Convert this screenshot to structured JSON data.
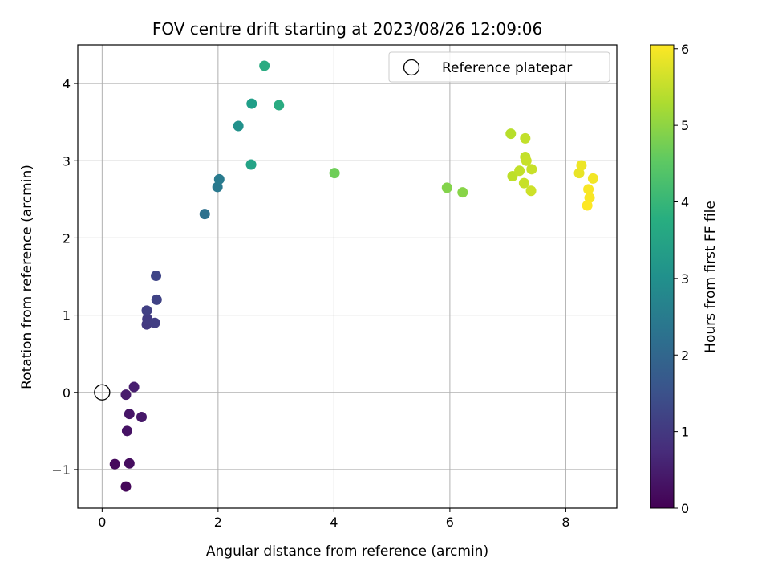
{
  "chart_data": {
    "type": "scatter",
    "title": "FOV centre drift starting at 2023/08/26 12:09:06",
    "xlabel": "Angular distance from reference (arcmin)",
    "ylabel": "Rotation from reference (arcmin)",
    "xlim": [
      -0.42,
      8.88
    ],
    "ylim": [
      -1.5,
      4.5
    ],
    "xticks": [
      0,
      2,
      4,
      6,
      8
    ],
    "yticks": [
      -1,
      0,
      1,
      2,
      3,
      4
    ],
    "xtick_labels": [
      "0",
      "2",
      "4",
      "6",
      "8"
    ],
    "ytick_labels": [
      "−1",
      "0",
      "1",
      "2",
      "3",
      "4"
    ],
    "grid": true,
    "legend": {
      "position": "top-right",
      "label": "Reference platepar"
    },
    "reference_point": {
      "x": 0,
      "y": 0
    },
    "colorbar": {
      "label": "Hours from first FF file",
      "colormap": "viridis",
      "range": [
        0,
        6.05
      ],
      "ticks": [
        0,
        1,
        2,
        3,
        4,
        5,
        6
      ],
      "tick_labels": [
        "0",
        "1",
        "2",
        "3",
        "4",
        "5",
        "6"
      ]
    },
    "points": [
      {
        "x": 0.41,
        "y": -1.22,
        "t": 0.1
      },
      {
        "x": 0.22,
        "y": -0.93,
        "t": 0.15
      },
      {
        "x": 0.47,
        "y": -0.92,
        "t": 0.2
      },
      {
        "x": 0.43,
        "y": -0.5,
        "t": 0.3
      },
      {
        "x": 0.47,
        "y": -0.28,
        "t": 0.35
      },
      {
        "x": 0.68,
        "y": -0.32,
        "t": 0.4
      },
      {
        "x": 0.41,
        "y": -0.03,
        "t": 0.45
      },
      {
        "x": 0.55,
        "y": 0.07,
        "t": 0.5
      },
      {
        "x": 0.77,
        "y": 0.88,
        "t": 1.0
      },
      {
        "x": 0.78,
        "y": 0.95,
        "t": 1.05
      },
      {
        "x": 0.91,
        "y": 0.9,
        "t": 1.1
      },
      {
        "x": 0.77,
        "y": 1.06,
        "t": 1.15
      },
      {
        "x": 0.94,
        "y": 1.2,
        "t": 1.2
      },
      {
        "x": 0.93,
        "y": 1.51,
        "t": 1.25
      },
      {
        "x": 1.77,
        "y": 2.31,
        "t": 2.25
      },
      {
        "x": 1.99,
        "y": 2.66,
        "t": 2.45
      },
      {
        "x": 2.02,
        "y": 2.76,
        "t": 2.5
      },
      {
        "x": 2.35,
        "y": 3.45,
        "t": 3.05
      },
      {
        "x": 2.58,
        "y": 3.74,
        "t": 3.4
      },
      {
        "x": 2.57,
        "y": 2.95,
        "t": 3.5
      },
      {
        "x": 2.8,
        "y": 4.23,
        "t": 3.7
      },
      {
        "x": 3.05,
        "y": 3.72,
        "t": 3.7
      },
      {
        "x": 4.01,
        "y": 2.84,
        "t": 4.7
      },
      {
        "x": 5.95,
        "y": 2.65,
        "t": 4.9
      },
      {
        "x": 6.22,
        "y": 2.59,
        "t": 4.95
      },
      {
        "x": 7.05,
        "y": 3.35,
        "t": 5.4
      },
      {
        "x": 7.08,
        "y": 2.8,
        "t": 5.45
      },
      {
        "x": 7.3,
        "y": 3.29,
        "t": 5.5
      },
      {
        "x": 7.3,
        "y": 3.05,
        "t": 5.5
      },
      {
        "x": 7.2,
        "y": 2.87,
        "t": 5.5
      },
      {
        "x": 7.32,
        "y": 3.0,
        "t": 5.55
      },
      {
        "x": 7.41,
        "y": 2.89,
        "t": 5.55
      },
      {
        "x": 7.28,
        "y": 2.71,
        "t": 5.55
      },
      {
        "x": 7.4,
        "y": 2.61,
        "t": 5.6
      },
      {
        "x": 8.23,
        "y": 2.84,
        "t": 5.85
      },
      {
        "x": 8.27,
        "y": 2.94,
        "t": 5.9
      },
      {
        "x": 8.47,
        "y": 2.77,
        "t": 5.95
      },
      {
        "x": 8.39,
        "y": 2.63,
        "t": 6.0
      },
      {
        "x": 8.41,
        "y": 2.52,
        "t": 6.0
      },
      {
        "x": 8.37,
        "y": 2.42,
        "t": 6.05
      }
    ]
  }
}
